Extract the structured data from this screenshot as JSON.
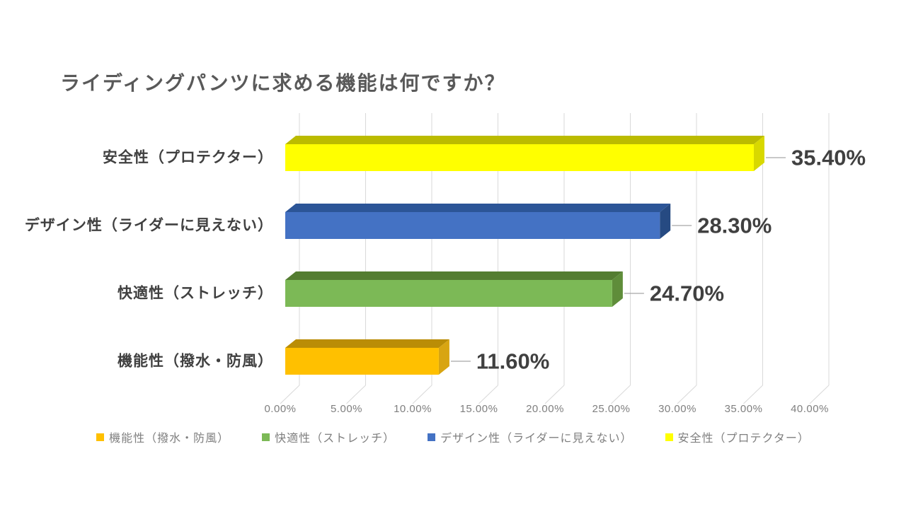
{
  "chart_data": {
    "type": "bar",
    "orientation": "horizontal",
    "style": "3d",
    "title": "ライディングパンツに求める機能は何ですか？",
    "categories": [
      "安全性（プロテクター）",
      "デザイン性（ライダーに見えない）",
      "快適性（ストレッチ）",
      "機能性（撥水・防風）"
    ],
    "values": [
      35.4,
      28.3,
      24.7,
      11.6
    ],
    "value_labels": [
      "35.40%",
      "28.30%",
      "24.70%",
      "11.60%"
    ],
    "bar_colors": [
      {
        "front": "#FFFF00",
        "top": "#BBBB00",
        "side": "#D8D800"
      },
      {
        "front": "#4472C4",
        "top": "#2C5597",
        "side": "#264A82"
      },
      {
        "front": "#7CB956",
        "top": "#547D31",
        "side": "#5F8D3A"
      },
      {
        "front": "#FFC000",
        "top": "#BA8D06",
        "side": "#D8A512"
      }
    ],
    "xlabel": "",
    "ylabel": "",
    "xlim": [
      0,
      40
    ],
    "x_tick_step": 5,
    "x_tick_labels": [
      "0.00%",
      "5.00%",
      "10.00%",
      "15.00%",
      "20.00%",
      "25.00%",
      "30.00%",
      "35.00%",
      "40.00%"
    ],
    "grid": true,
    "legend_position": "bottom",
    "legend": [
      {
        "label": "機能性（撥水・防風）",
        "color": "#FFC000"
      },
      {
        "label": "快適性（ストレッチ）",
        "color": "#7CB956"
      },
      {
        "label": "デザイン性（ライダーに見えない）",
        "color": "#4472C4"
      },
      {
        "label": "安全性（プロテクター）",
        "color": "#FFFF00"
      }
    ],
    "colors": {
      "background": "#FFFFFF",
      "gridline": "#D9D9D9",
      "leader_line": "#A6A6A6",
      "title_text": "#595959",
      "category_text": "#404040",
      "data_label_text": "#404040",
      "tick_text": "#7F7F7F",
      "legend_text": "#7F7F7F"
    }
  }
}
